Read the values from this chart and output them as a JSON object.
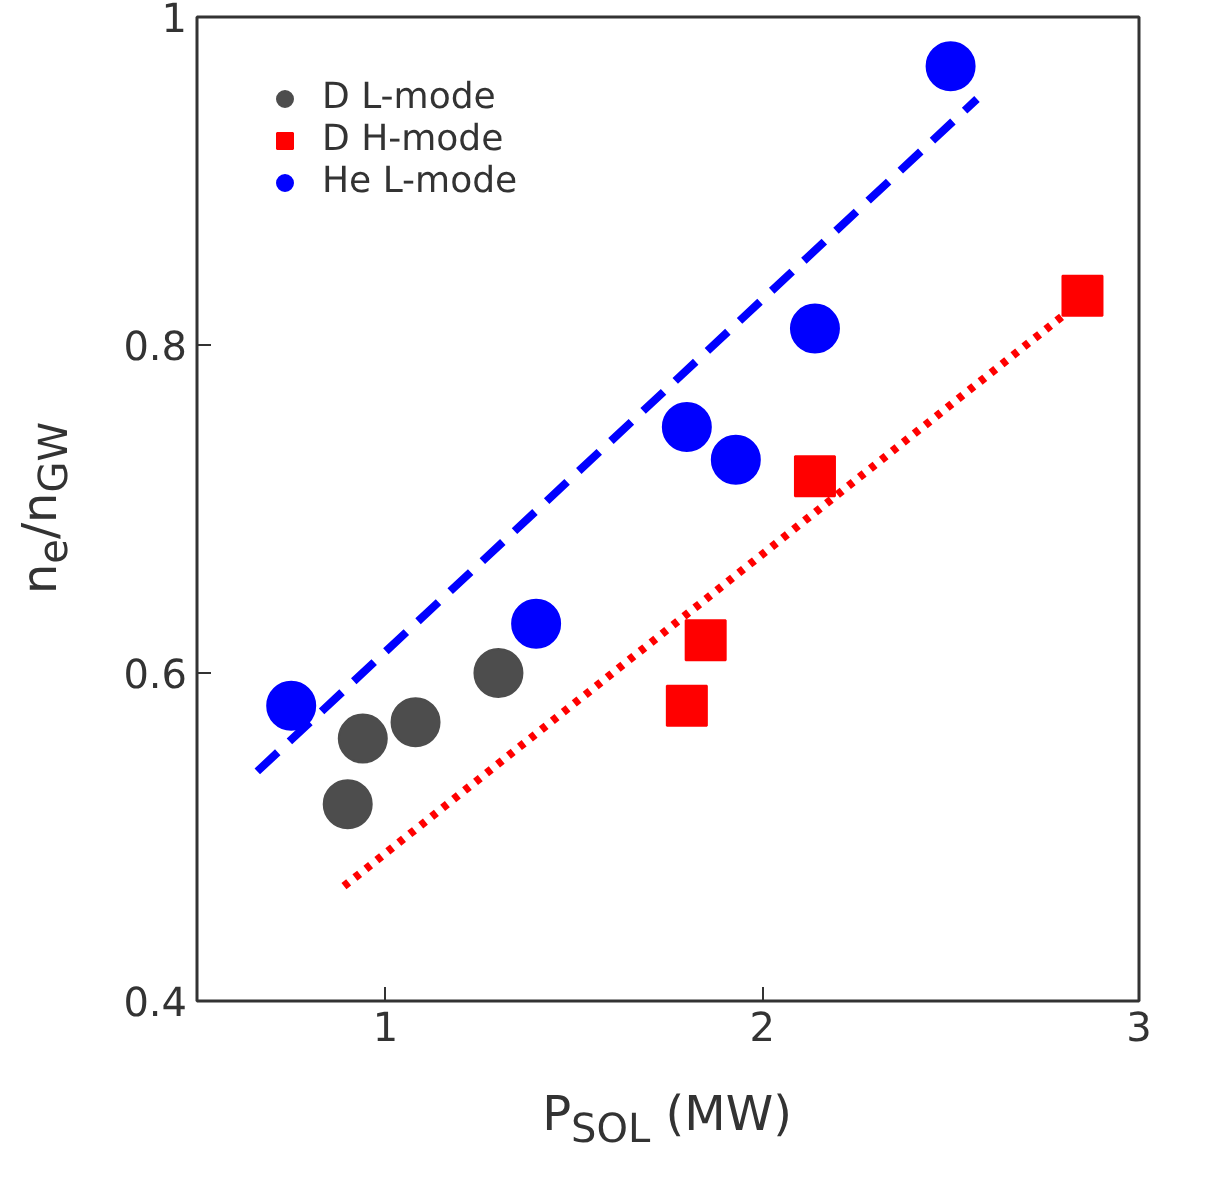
{
  "chart_data": {
    "type": "scatter",
    "xlabel": "P$_{SOL}$ (MW)",
    "ylabel": "n$_{e}$/n$_{GW}$",
    "xlim": [
      0.5,
      3
    ],
    "ylim": [
      0.4,
      1
    ],
    "xticks": [
      1,
      2,
      3
    ],
    "yticks": [
      0.4,
      0.6,
      0.8,
      1
    ],
    "grid": false,
    "legend": "top left",
    "series": [
      {
        "name": "D L-mode",
        "color": "#4d4d4d",
        "marker": "circle",
        "x": [
          0.9,
          0.94,
          1.08,
          1.3
        ],
        "values": [
          0.52,
          0.56,
          0.57,
          0.6
        ]
      },
      {
        "name": "D H-mode",
        "color": "#ff0000",
        "marker": "square",
        "x": [
          1.8,
          1.85,
          2.14,
          2.85
        ],
        "values": [
          0.58,
          0.62,
          0.72,
          0.83
        ]
      },
      {
        "name": "He L-mode",
        "color": "#0000ff",
        "marker": "circle",
        "x": [
          0.75,
          1.4,
          1.8,
          1.93,
          2.14,
          2.5
        ],
        "values": [
          0.58,
          0.63,
          0.75,
          0.73,
          0.81,
          0.97
        ]
      },
      {
        "type": "line",
        "color": "#0000ff",
        "line_style": "dashed",
        "x": [
          0.66,
          2.57
        ],
        "values": [
          0.54,
          0.95
        ]
      },
      {
        "type": "line",
        "color": "#ff0000",
        "line_style": "dotted",
        "x": [
          0.89,
          2.81
        ],
        "values": [
          0.47,
          0.82
        ]
      }
    ]
  }
}
